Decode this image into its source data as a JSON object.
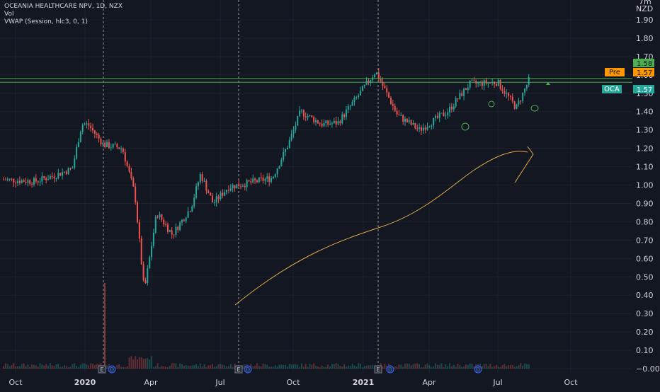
{
  "legend": {
    "symbol": "OCEANIA HEALTHCARE NPV, 1D, NZX",
    "volume": "Vol",
    "vwap": "VWAP (Session, hlc3, 0, 1)"
  },
  "axis": {
    "currency_top": "7m",
    "currency": "NZD",
    "y_ticks": [
      "1.90",
      "1.80",
      "1.70",
      "1.60",
      "1.50",
      "1.40",
      "1.30",
      "1.20",
      "1.10",
      "1.00",
      "0.90",
      "0.80",
      "0.70",
      "0.60",
      "0.50",
      "0.40",
      "0.30",
      "0.20",
      "0.10",
      "−0.00"
    ],
    "x_ticks": [
      {
        "label": "Oct",
        "bold": false
      },
      {
        "label": "2020",
        "bold": true
      },
      {
        "label": "Apr",
        "bold": false
      },
      {
        "label": "Jul",
        "bold": false
      },
      {
        "label": "Oct",
        "bold": false
      },
      {
        "label": "2021",
        "bold": true
      },
      {
        "label": "Apr",
        "bold": false
      },
      {
        "label": "Jul",
        "bold": false
      },
      {
        "label": "Oct",
        "bold": false
      }
    ]
  },
  "price_tags": [
    {
      "label": "",
      "value": "1.58",
      "bg": "#4caf50",
      "fg": "#131722"
    },
    {
      "label": "Pre",
      "value": "1.57",
      "bg": "#ff9800",
      "fg": "#131722"
    },
    {
      "label": "OCA",
      "value": "1.57",
      "bg": "#26a69a",
      "fg": "#ffffff"
    }
  ],
  "events": [
    {
      "letter": "E"
    },
    {
      "letter": "D"
    },
    {
      "letter": "E"
    },
    {
      "letter": "D"
    },
    {
      "letter": "E"
    },
    {
      "letter": "D"
    },
    {
      "letter": "D"
    }
  ],
  "colors": {
    "background": "#131722",
    "up": "#26a69a",
    "down": "#ef5350",
    "grid": "#1e222d",
    "hline": "#4caf50",
    "drawing": "#e0a84a"
  },
  "chart_data": {
    "type": "candlestick",
    "symbol": "OCEANIA HEALTHCARE NPV",
    "interval": "1D",
    "exchange": "NZX",
    "currency": "NZD",
    "ylim": [
      0.0,
      1.95
    ],
    "x_tick_labels": [
      "Oct",
      "2020",
      "Apr",
      "Jul",
      "Oct",
      "2021",
      "Apr",
      "Jul",
      "Oct"
    ],
    "horizontal_lines": [
      1.58,
      1.56
    ],
    "last_price": 1.57,
    "pre_market": 1.57,
    "close_path": [
      {
        "t": 0.0,
        "price": 1.03
      },
      {
        "t": 0.05,
        "price": 1.02
      },
      {
        "t": 0.08,
        "price": 1.05
      },
      {
        "t": 0.11,
        "price": 1.09
      },
      {
        "t": 0.125,
        "price": 1.33
      },
      {
        "t": 0.135,
        "price": 1.33
      },
      {
        "t": 0.16,
        "price": 1.22
      },
      {
        "t": 0.19,
        "price": 1.2
      },
      {
        "t": 0.21,
        "price": 0.95
      },
      {
        "t": 0.225,
        "price": 0.42
      },
      {
        "t": 0.245,
        "price": 0.85
      },
      {
        "t": 0.27,
        "price": 0.73
      },
      {
        "t": 0.3,
        "price": 0.88
      },
      {
        "t": 0.315,
        "price": 1.06
      },
      {
        "t": 0.335,
        "price": 0.9
      },
      {
        "t": 0.36,
        "price": 0.99
      },
      {
        "t": 0.39,
        "price": 1.01
      },
      {
        "t": 0.43,
        "price": 1.04
      },
      {
        "t": 0.455,
        "price": 1.22
      },
      {
        "t": 0.475,
        "price": 1.4
      },
      {
        "t": 0.51,
        "price": 1.33
      },
      {
        "t": 0.535,
        "price": 1.34
      },
      {
        "t": 0.57,
        "price": 1.5
      },
      {
        "t": 0.595,
        "price": 1.62
      },
      {
        "t": 0.63,
        "price": 1.38
      },
      {
        "t": 0.665,
        "price": 1.3
      },
      {
        "t": 0.71,
        "price": 1.4
      },
      {
        "t": 0.745,
        "price": 1.55
      },
      {
        "t": 0.79,
        "price": 1.56
      },
      {
        "t": 0.82,
        "price": 1.42
      },
      {
        "t": 0.84,
        "price": 1.57
      }
    ]
  }
}
